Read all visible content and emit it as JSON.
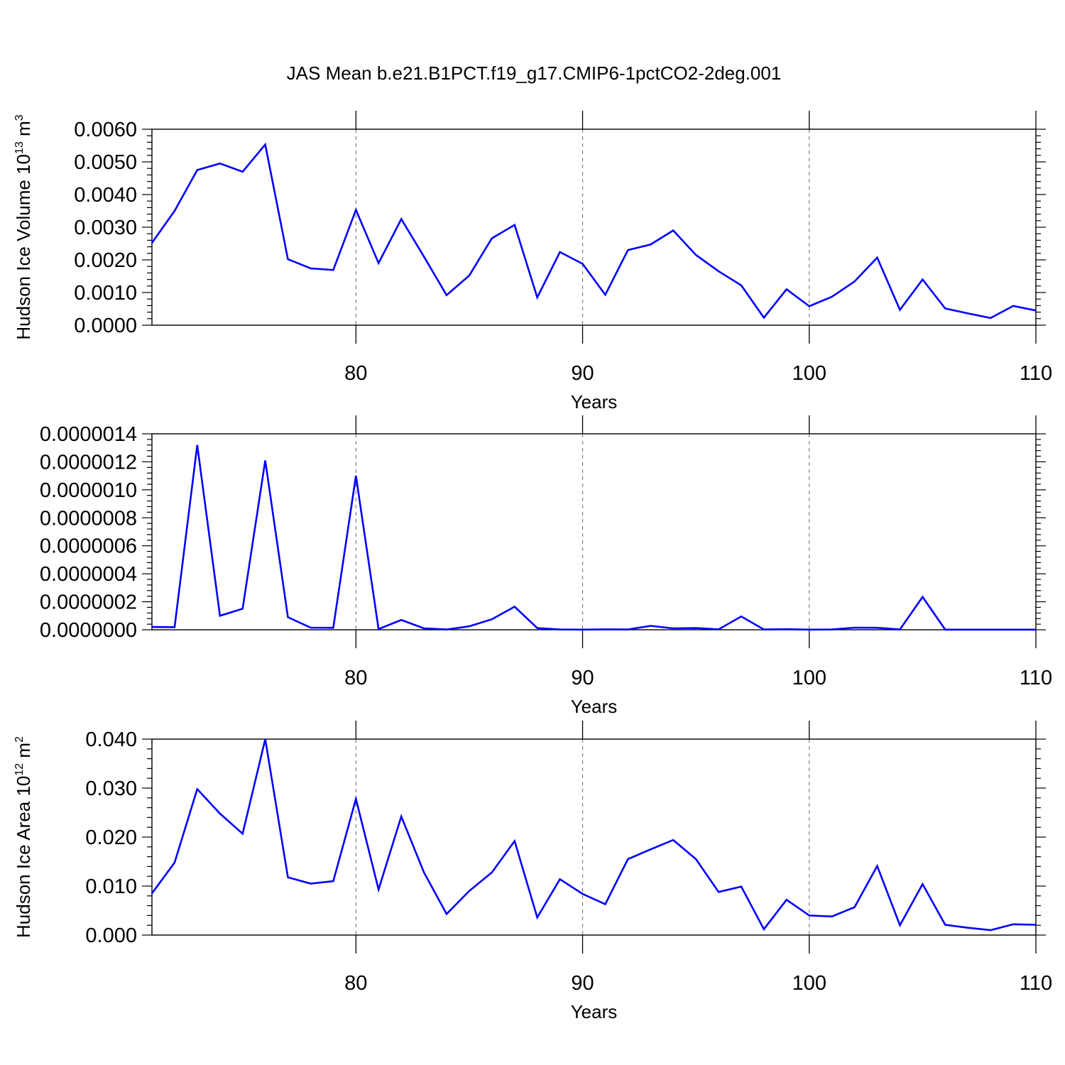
{
  "figure_title": "JAS Mean b.e21.B1PCT.f19_g17.CMIP6-1pctCO2-2deg.001",
  "colors": {
    "line": "#0000ff",
    "axes": "#000000",
    "gridline": "#808080"
  },
  "chart_data": [
    {
      "type": "line",
      "title": "JAS Mean b.e21.B1PCT.f19_g17.CMIP6-1pctCO2-2deg.001",
      "ylabel": {
        "text": "Hudson Ice Volume 10",
        "sup1": "13",
        "unit": " m",
        "sup2": "3"
      },
      "xlabel": "Years",
      "xlim": [
        71,
        110
      ],
      "ylim": [
        0,
        0.006
      ],
      "xticks": [
        80,
        90,
        100,
        110
      ],
      "xtick_labels": [
        "80",
        "90",
        "100",
        "110"
      ],
      "yticks": [
        0,
        0.001,
        0.002,
        0.003,
        0.004,
        0.005,
        0.006
      ],
      "ytick_labels": [
        "0.0000",
        "0.0010",
        "0.0020",
        "0.0030",
        "0.0040",
        "0.0050",
        "0.0060"
      ],
      "grid": "dashed vertical at major x ticks",
      "series": [
        {
          "x": [
            71,
            72,
            73,
            74,
            75,
            76,
            77,
            78,
            79,
            80,
            81,
            82,
            83,
            84,
            85,
            86,
            87,
            88,
            89,
            90,
            91,
            92,
            93,
            94,
            95,
            96,
            97,
            98,
            99,
            100,
            101,
            102,
            103,
            104,
            105,
            106,
            107,
            108,
            109,
            110
          ],
          "values": [
            0.00252,
            0.0035,
            0.00475,
            0.00495,
            0.0047,
            0.00553,
            0.00202,
            0.00174,
            0.00169,
            0.00353,
            0.0019,
            0.00325,
            0.0021,
            0.00092,
            0.00152,
            0.00266,
            0.00307,
            0.00085,
            0.00224,
            0.00188,
            0.00093,
            0.0023,
            0.00247,
            0.0029,
            0.00215,
            0.00165,
            0.00122,
            0.00023,
            0.0011,
            0.00058,
            0.00087,
            0.00134,
            0.00207,
            0.00047,
            0.0014,
            0.00051,
            0.00036,
            0.00022,
            0.00059,
            0.00045
          ]
        }
      ]
    },
    {
      "type": "line",
      "ylabel": {
        "text": "",
        "sup1": "",
        "unit": "",
        "sup2": ""
      },
      "xlabel": "Years",
      "xlim": [
        71,
        110
      ],
      "ylim": [
        0,
        1.4e-06
      ],
      "xticks": [
        80,
        90,
        100,
        110
      ],
      "xtick_labels": [
        "80",
        "90",
        "100",
        "110"
      ],
      "yticks": [
        0,
        2e-07,
        4e-07,
        6e-07,
        8e-07,
        1e-06,
        1.2e-06,
        1.4e-06
      ],
      "ytick_labels": [
        "0.0000000",
        "0.0000002",
        "0.0000004",
        "0.0000006",
        "0.0000008",
        "0.0000010",
        "0.0000012",
        "0.0000014"
      ],
      "grid": "dashed vertical at major x ticks",
      "series": [
        {
          "x": [
            71,
            72,
            73,
            74,
            75,
            76,
            77,
            78,
            79,
            80,
            81,
            82,
            83,
            84,
            85,
            86,
            87,
            88,
            89,
            90,
            91,
            92,
            93,
            94,
            95,
            96,
            97,
            98,
            99,
            100,
            101,
            102,
            103,
            104,
            105,
            106,
            107,
            108,
            109,
            110
          ],
          "values": [
            2e-08,
            1.9e-08,
            1.32e-06,
            1e-07,
            1.5e-07,
            1.21e-06,
            9e-08,
            1.5e-08,
            1.4e-08,
            1.1e-06,
            5e-09,
            7e-08,
            1e-08,
            2e-09,
            2.5e-08,
            7.5e-08,
            1.65e-07,
            1.2e-08,
            2e-09,
            1e-09,
            3e-09,
            2e-09,
            2.8e-08,
            1e-08,
            1.2e-08,
            3e-09,
            9.5e-08,
            2e-09,
            4e-09,
            1e-09,
            2e-09,
            1.5e-08,
            1.4e-08,
            2e-09,
            2.35e-07,
            1e-09,
            1e-09,
            1e-09,
            1e-09,
            1e-09
          ]
        }
      ]
    },
    {
      "type": "line",
      "ylabel": {
        "text": "Hudson Ice Area 10",
        "sup1": "12",
        "unit": " m",
        "sup2": "2"
      },
      "xlabel": "Years",
      "xlim": [
        71,
        110
      ],
      "ylim": [
        0,
        0.04
      ],
      "xticks": [
        80,
        90,
        100,
        110
      ],
      "xtick_labels": [
        "80",
        "90",
        "100",
        "110"
      ],
      "yticks": [
        0,
        0.01,
        0.02,
        0.03,
        0.04
      ],
      "ytick_labels": [
        "0.000",
        "0.010",
        "0.020",
        "0.030",
        "0.040"
      ],
      "grid": "dashed vertical at major x ticks",
      "series": [
        {
          "x": [
            71,
            72,
            73,
            74,
            75,
            76,
            77,
            78,
            79,
            80,
            81,
            82,
            83,
            84,
            85,
            86,
            87,
            88,
            89,
            90,
            91,
            92,
            93,
            94,
            95,
            96,
            97,
            98,
            99,
            100,
            101,
            102,
            103,
            104,
            105,
            106,
            107,
            108,
            109,
            110
          ],
          "values": [
            0.0085,
            0.0148,
            0.0298,
            0.0248,
            0.0207,
            0.04,
            0.0118,
            0.0105,
            0.011,
            0.0278,
            0.0093,
            0.0242,
            0.0128,
            0.0043,
            0.009,
            0.0128,
            0.0192,
            0.0036,
            0.0114,
            0.0084,
            0.0063,
            0.0155,
            0.0175,
            0.0194,
            0.0155,
            0.0088,
            0.0099,
            0.0012,
            0.0072,
            0.004,
            0.0038,
            0.0057,
            0.0141,
            0.002,
            0.0104,
            0.0021,
            0.0015,
            0.001,
            0.0022,
            0.0021
          ]
        }
      ]
    }
  ]
}
